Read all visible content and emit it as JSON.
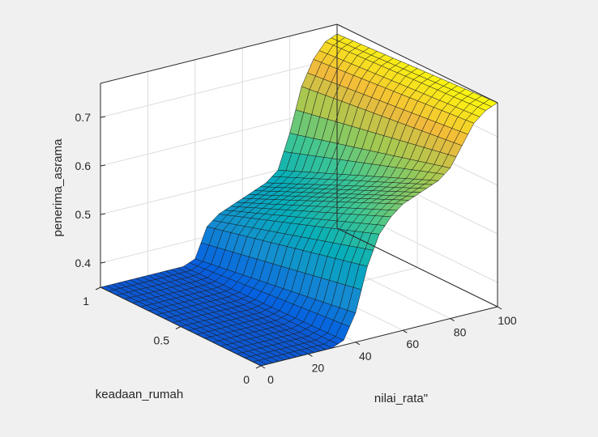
{
  "chart_data": {
    "type": "surface",
    "title": "",
    "xlabel": "nilai_rata\"",
    "ylabel": "keadaan_rumah",
    "zlabel": "penerima_asrama",
    "xlim": [
      0,
      100
    ],
    "ylim": [
      0,
      1
    ],
    "zlim": [
      0.35,
      0.77
    ],
    "x_ticks": [
      "0",
      "20",
      "40",
      "60",
      "80",
      "100"
    ],
    "y_ticks": [
      "0",
      "0.5",
      "1"
    ],
    "z_ticks": [
      "0.4",
      "0.5",
      "0.6",
      "0.7"
    ],
    "grid": true,
    "colormap": "parula",
    "surface_profile": {
      "x": [
        0,
        30,
        35,
        40,
        45,
        50,
        55,
        60,
        65,
        70,
        75,
        80,
        85,
        90,
        95,
        100
      ],
      "z_at_y0": [
        0.35,
        0.35,
        0.36,
        0.41,
        0.5,
        0.56,
        0.59,
        0.61,
        0.62,
        0.63,
        0.64,
        0.66,
        0.7,
        0.74,
        0.76,
        0.77
      ],
      "z_at_y1": [
        0.35,
        0.35,
        0.35,
        0.36,
        0.42,
        0.44,
        0.45,
        0.46,
        0.47,
        0.48,
        0.5,
        0.57,
        0.66,
        0.71,
        0.74,
        0.75
      ]
    }
  }
}
